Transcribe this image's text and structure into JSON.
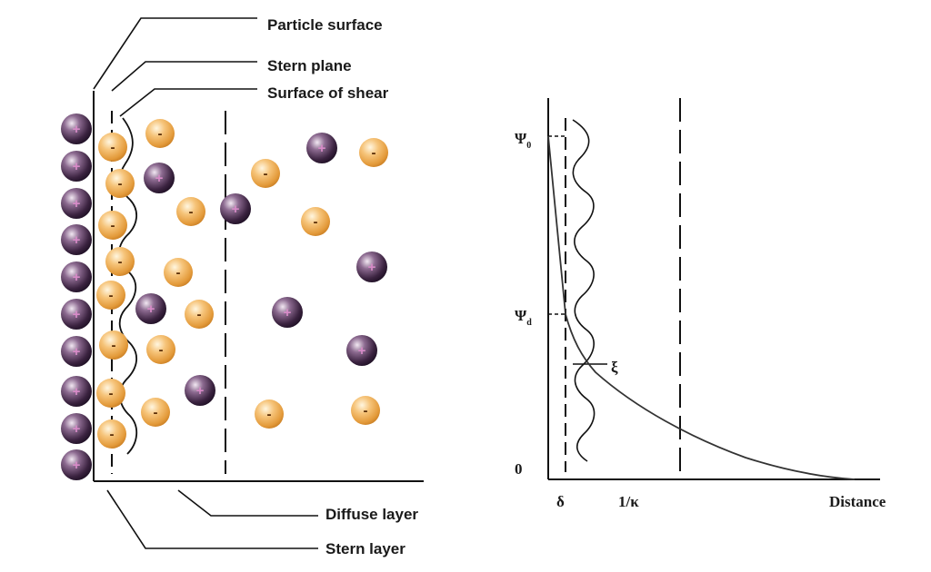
{
  "labels": {
    "particle_surface": "Particle surface",
    "stern_plane": "Stern plane",
    "surface_of_shear": "Surface of shear",
    "diffuse_layer": "Diffuse layer",
    "stern_layer": "Stern layer"
  },
  "graph": {
    "psi0": "Ψ",
    "psi0_sub": "0",
    "psid": "Ψ",
    "psid_sub": "d",
    "zeta": "ξ",
    "zero": "0",
    "delta": "δ",
    "inv_kappa": "1/κ",
    "distance": "Distance"
  },
  "ions": {
    "positive_sign": "+",
    "negative_sign": "-",
    "positive_color": "#3b2340",
    "negative_color": "#e9a040"
  }
}
